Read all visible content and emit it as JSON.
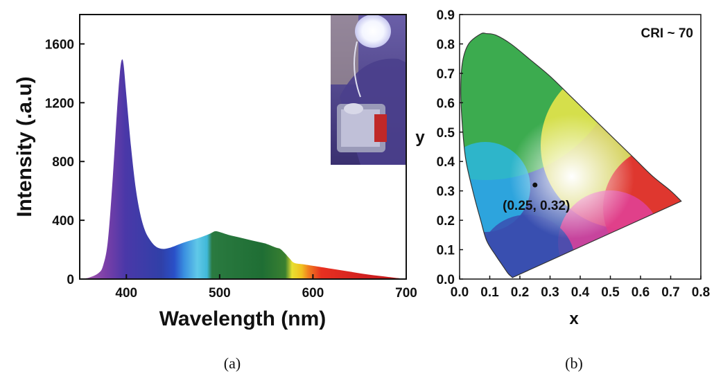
{
  "chart_data": [
    {
      "type": "area",
      "panel_label": "(a)",
      "xlabel": "Wavelength (nm)",
      "ylabel": "Intensity (.a.u)",
      "xlim": [
        350,
        700
      ],
      "ylim": [
        0,
        1800
      ],
      "xticks": [
        400,
        500,
        600,
        700
      ],
      "yticks": [
        0,
        400,
        800,
        1200,
        1600
      ],
      "grid": false,
      "fill": "spectral-gradient",
      "x": [
        350,
        360,
        370,
        375,
        380,
        385,
        390,
        393,
        395,
        397,
        400,
        405,
        410,
        415,
        420,
        425,
        430,
        435,
        440,
        445,
        450,
        460,
        470,
        480,
        490,
        495,
        500,
        510,
        520,
        530,
        540,
        550,
        560,
        565,
        570,
        575,
        580,
        590,
        600,
        620,
        640,
        660,
        680,
        700
      ],
      "y": [
        0,
        10,
        40,
        90,
        250,
        650,
        1150,
        1400,
        1490,
        1460,
        1250,
        900,
        620,
        440,
        330,
        270,
        230,
        210,
        205,
        210,
        220,
        245,
        265,
        285,
        310,
        325,
        320,
        300,
        285,
        270,
        255,
        240,
        215,
        205,
        175,
        140,
        110,
        100,
        90,
        70,
        50,
        30,
        15,
        0
      ]
    },
    {
      "type": "scatter",
      "panel_label": "(b)",
      "xlabel": "x",
      "ylabel": "y",
      "xlim": [
        0,
        0.8
      ],
      "ylim": [
        0,
        0.9
      ],
      "xticks": [
        "0.0",
        "0.1",
        "0.2",
        "0.3",
        "0.4",
        "0.5",
        "0.6",
        "0.7",
        "0.8"
      ],
      "yticks": [
        "0.0",
        "0.1",
        "0.2",
        "0.3",
        "0.4",
        "0.5",
        "0.6",
        "0.7",
        "0.8",
        "0.9"
      ],
      "background": "CIE 1931 chromaticity diagram",
      "points": [
        {
          "x": 0.25,
          "y": 0.32,
          "label": "(0.25, 0.32)"
        }
      ],
      "annotation": "CRI ~ 70",
      "locus": [
        [
          0.175,
          0.005
        ],
        [
          0.17,
          0.01
        ],
        [
          0.16,
          0.02
        ],
        [
          0.14,
          0.05
        ],
        [
          0.12,
          0.08
        ],
        [
          0.09,
          0.13
        ],
        [
          0.07,
          0.2
        ],
        [
          0.045,
          0.295
        ],
        [
          0.02,
          0.41
        ],
        [
          0.008,
          0.54
        ],
        [
          0.004,
          0.65
        ],
        [
          0.01,
          0.74
        ],
        [
          0.03,
          0.8
        ],
        [
          0.07,
          0.834
        ],
        [
          0.09,
          0.835
        ],
        [
          0.12,
          0.83
        ],
        [
          0.17,
          0.8
        ],
        [
          0.23,
          0.75
        ],
        [
          0.3,
          0.69
        ],
        [
          0.37,
          0.62
        ],
        [
          0.44,
          0.55
        ],
        [
          0.51,
          0.48
        ],
        [
          0.58,
          0.41
        ],
        [
          0.64,
          0.35
        ],
        [
          0.7,
          0.3
        ],
        [
          0.735,
          0.265
        ]
      ],
      "colors": {
        "green": "#4cb84c",
        "yellow": "#f0e84a",
        "red": "#e0262a",
        "magenta": "#e0429a",
        "blue": "#3a55b0",
        "cyan": "#2ab8e8",
        "white": "#ffffff"
      }
    }
  ],
  "inset": {
    "photo_icon": "led-photo-inset"
  }
}
